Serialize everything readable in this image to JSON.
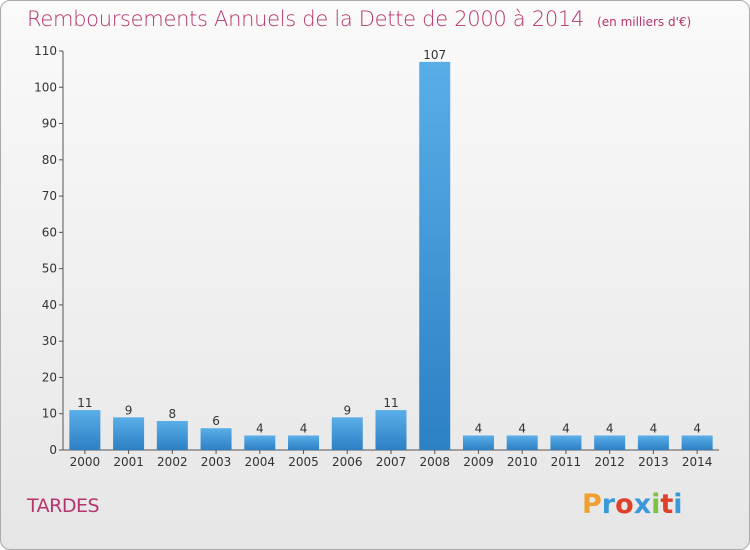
{
  "title": "Remboursements Annuels de la Dette de 2000 à 2014",
  "unit_note": "(en milliers d'€)",
  "place": "TARDES",
  "brand": {
    "letters": [
      "P",
      "r",
      "o",
      "x",
      "i",
      "t",
      "i"
    ],
    "colors": [
      "#f0a030",
      "#3a9ad9",
      "#e0402a",
      "#3a9ad9",
      "#7cc242",
      "#e0402a",
      "#3a9ad9"
    ]
  },
  "colors": {
    "bar_light": "#5aaee8",
    "bar_dark": "#2c80c4",
    "title": "#b5356e"
  },
  "chart_data": {
    "type": "bar",
    "title": "Remboursements Annuels de la Dette de 2000 à 2014",
    "categories": [
      "2000",
      "2001",
      "2002",
      "2003",
      "2004",
      "2005",
      "2006",
      "2007",
      "2008",
      "2009",
      "2010",
      "2011",
      "2012",
      "2013",
      "2014"
    ],
    "values": [
      11,
      9,
      8,
      6,
      4,
      4,
      9,
      11,
      107,
      4,
      4,
      4,
      4,
      4,
      4
    ],
    "value_labels": [
      "11",
      "9",
      "8",
      "6",
      "4",
      "4",
      "9",
      "11",
      "107",
      "4",
      "4",
      "4",
      "4",
      "4",
      "4"
    ],
    "y_ticks": [
      0,
      10,
      20,
      30,
      40,
      50,
      60,
      70,
      80,
      90,
      100,
      110
    ],
    "y_tick_labels": [
      "0",
      "10",
      "20",
      "30",
      "40",
      "50",
      "60",
      "70",
      "80",
      "90",
      "100",
      "110"
    ],
    "ylim": [
      0,
      110
    ],
    "grid": false,
    "legend": "none",
    "xlabel": "",
    "ylabel": ""
  }
}
